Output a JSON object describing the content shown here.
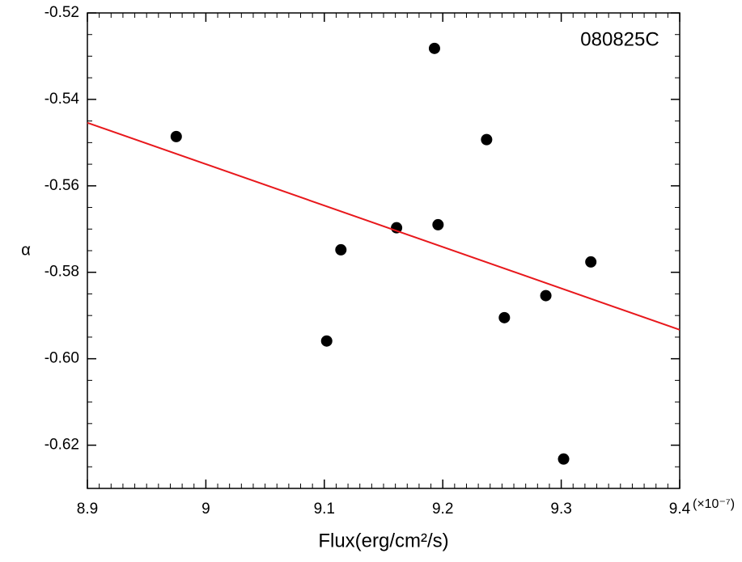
{
  "chart_data": {
    "type": "scatter",
    "annotation": "080825C",
    "x_label": "Flux(erg/cm²/s)",
    "y_label": "α",
    "x_multiplier": "(×10⁻⁷)",
    "xlim": [
      8.9,
      9.4
    ],
    "xticks": [
      8.9,
      9,
      9.1,
      9.2,
      9.3,
      9.4
    ],
    "ylim": [
      -0.63,
      -0.52
    ],
    "yticks": [
      -0.52,
      -0.54,
      -0.56,
      -0.58,
      {
        "value": -0.6,
        "label": "-0.60"
      },
      -0.62
    ],
    "series": [
      {
        "color": "#000000",
        "x": [
          8.975,
          9.193,
          9.237,
          9.114,
          9.161,
          9.196,
          9.102,
          9.252,
          9.287,
          9.325,
          9.302
        ],
        "values": [
          -0.5486,
          -0.5282,
          -0.5493,
          -0.5748,
          -0.5697,
          -0.569,
          -0.5959,
          -0.5905,
          -0.5854,
          -0.5776,
          -0.6232
        ]
      },
      {
        "color": "#e8181c",
        "x": [
          8.9,
          9.4
        ],
        "values": [
          -0.5454,
          -0.5933
        ],
        "style": "line"
      }
    ]
  }
}
